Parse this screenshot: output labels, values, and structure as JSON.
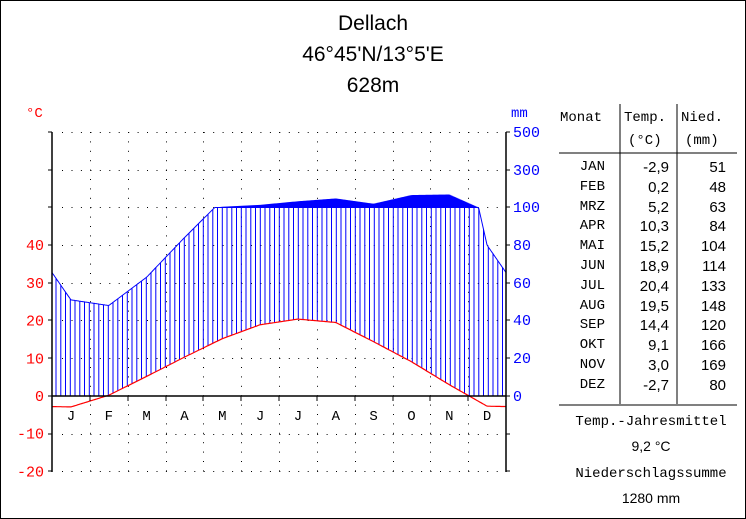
{
  "header": {
    "station": "Dellach",
    "coordinates": "46°45'N/13°5'E",
    "elevation": "628m"
  },
  "axes": {
    "left_unit": "°C",
    "right_unit": "mm",
    "left_ticks": [
      "40",
      "30",
      "20",
      "10",
      "0",
      "-10",
      "-20"
    ],
    "right_ticks": [
      "500",
      "300",
      "100",
      "80",
      "60",
      "40",
      "20",
      "0"
    ],
    "month_labels": [
      "J",
      "F",
      "M",
      "A",
      "M",
      "J",
      "J",
      "A",
      "S",
      "O",
      "N",
      "D"
    ]
  },
  "table": {
    "headers": {
      "month": "Monat",
      "temp": "Temp.",
      "temp_unit": "(°C)",
      "precip": "Nied.",
      "precip_unit": "(mm)"
    },
    "rows": [
      {
        "month": "JAN",
        "temp": "-2,9",
        "precip": "51"
      },
      {
        "month": "FEB",
        "temp": "0,2",
        "precip": "48"
      },
      {
        "month": "MRZ",
        "temp": "5,2",
        "precip": "63"
      },
      {
        "month": "APR",
        "temp": "10,3",
        "precip": "84"
      },
      {
        "month": "MAI",
        "temp": "15,2",
        "precip": "104"
      },
      {
        "month": "JUN",
        "temp": "18,9",
        "precip": "114"
      },
      {
        "month": "JUL",
        "temp": "20,4",
        "precip": "133"
      },
      {
        "month": "AUG",
        "temp": "19,5",
        "precip": "148"
      },
      {
        "month": "SEP",
        "temp": "14,4",
        "precip": "120"
      },
      {
        "month": "OKT",
        "temp": "9,1",
        "precip": "166"
      },
      {
        "month": "NOV",
        "temp": "3,0",
        "precip": "169"
      },
      {
        "month": "DEZ",
        "temp": "-2,7",
        "precip": "80"
      }
    ]
  },
  "summary": {
    "temp_label": "Temp.-Jahresmittel",
    "temp_value": "9,2 °C",
    "precip_label": "Niederschlagssumme",
    "precip_value": "1280 mm"
  },
  "colors": {
    "temperature": "#ff0000",
    "precipitation": "#0000ff",
    "axis": "#000000"
  },
  "chart_data": {
    "type": "line",
    "title": "Dellach 46°45'N/13°5'E 628m",
    "categories": [
      "JAN",
      "FEB",
      "MRZ",
      "APR",
      "MAI",
      "JUN",
      "JUL",
      "AUG",
      "SEP",
      "OKT",
      "NOV",
      "DEZ"
    ],
    "series": [
      {
        "name": "Temp. (°C)",
        "axis": "left",
        "values": [
          -2.9,
          0.2,
          5.2,
          10.3,
          15.2,
          18.9,
          20.4,
          19.5,
          14.4,
          9.1,
          3.0,
          -2.7
        ]
      },
      {
        "name": "Nied. (mm)",
        "axis": "right",
        "values": [
          51,
          48,
          63,
          84,
          104,
          114,
          133,
          148,
          120,
          166,
          169,
          80
        ]
      }
    ],
    "xlabel": "",
    "ylabel_left": "°C",
    "ylabel_right": "mm",
    "ylim_left": [
      -20,
      50
    ],
    "ylim_right": [
      0,
      500
    ],
    "right_axis_note": "linear 0–100 (2 mm per °C), compressed above 100 (100 / 300 / 500)",
    "grid": "dotted",
    "annual_mean_temp": 9.2,
    "annual_precip_sum": 1280
  }
}
